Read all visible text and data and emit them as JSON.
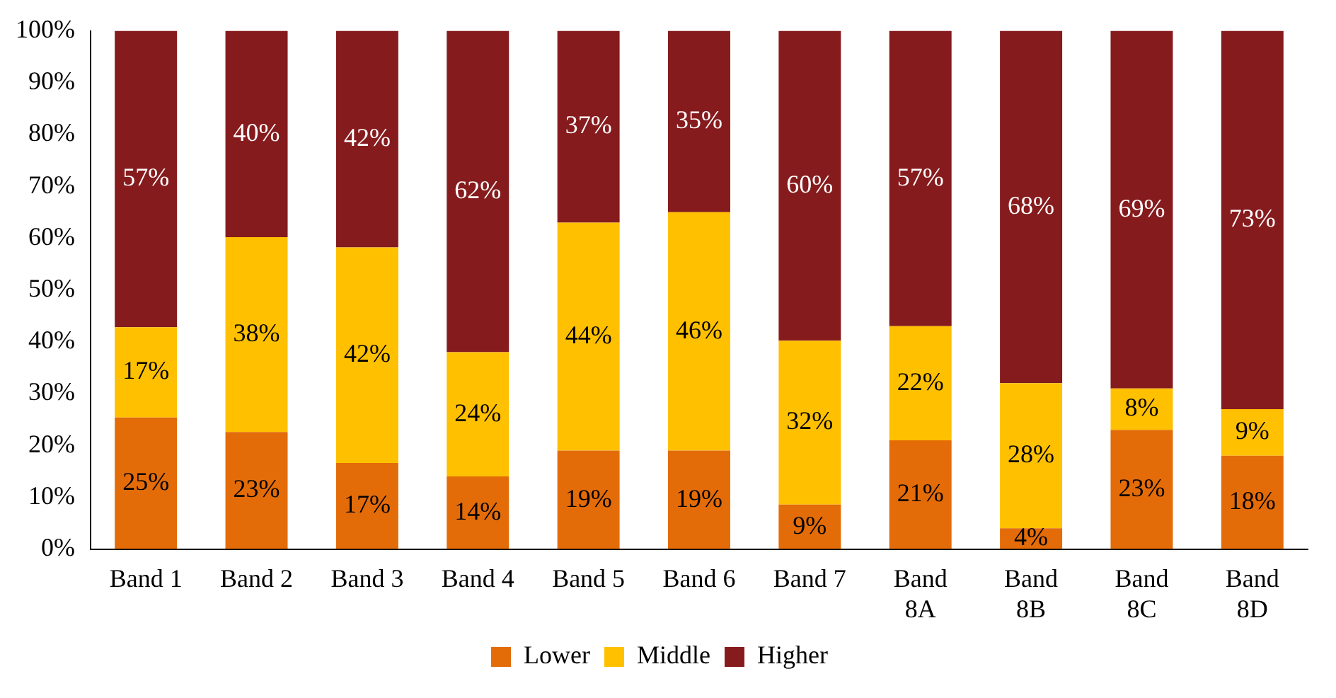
{
  "chart_data": {
    "type": "bar",
    "stacked": true,
    "categories": [
      "Band 1",
      "Band 2",
      "Band 3",
      "Band 4",
      "Band 5",
      "Band 6",
      "Band 7",
      "Band 8A",
      "Band 8B",
      "Band 8C",
      "Band 8D"
    ],
    "series": [
      {
        "name": "Lower",
        "color": "#e36c09",
        "values": [
          25.4,
          22.6,
          16.6,
          14,
          19,
          19,
          8.6,
          21,
          4,
          23,
          18
        ],
        "value_labels": [
          "25%",
          "23%",
          "17%",
          "14%",
          "19%",
          "19%",
          "9%",
          "21%",
          "4%",
          "23%",
          "18%"
        ]
      },
      {
        "name": "Middle",
        "color": "#ffc000",
        "values": [
          17.4,
          37.6,
          41.6,
          24,
          44,
          46,
          31.6,
          22,
          28,
          8,
          9
        ],
        "value_labels": [
          "17%",
          "38%",
          "42%",
          "24%",
          "44%",
          "46%",
          "32%",
          "22%",
          "28%",
          "8%",
          "9%"
        ]
      },
      {
        "name": "Higher",
        "color": "#861b1d",
        "values": [
          57.2,
          39.8,
          41.8,
          62,
          37,
          35,
          59.8,
          57,
          68,
          69,
          73
        ],
        "value_labels": [
          "57%",
          "40%",
          "42%",
          "62%",
          "37%",
          "35%",
          "60%",
          "57%",
          "68%",
          "69%",
          "73%"
        ]
      }
    ],
    "ylim": [
      0,
      100
    ],
    "yticks": [
      {
        "value": 0,
        "label": "0%"
      },
      {
        "value": 10,
        "label": "10%"
      },
      {
        "value": 20,
        "label": "20%"
      },
      {
        "value": 30,
        "label": "30%"
      },
      {
        "value": 40,
        "label": "40%"
      },
      {
        "value": 50,
        "label": "50%"
      },
      {
        "value": 60,
        "label": "60%"
      },
      {
        "value": 70,
        "label": "70%"
      },
      {
        "value": 80,
        "label": "80%"
      },
      {
        "value": 90,
        "label": "90%"
      },
      {
        "value": 100,
        "label": "100%"
      }
    ],
    "grid": false,
    "legend": "bottom"
  }
}
